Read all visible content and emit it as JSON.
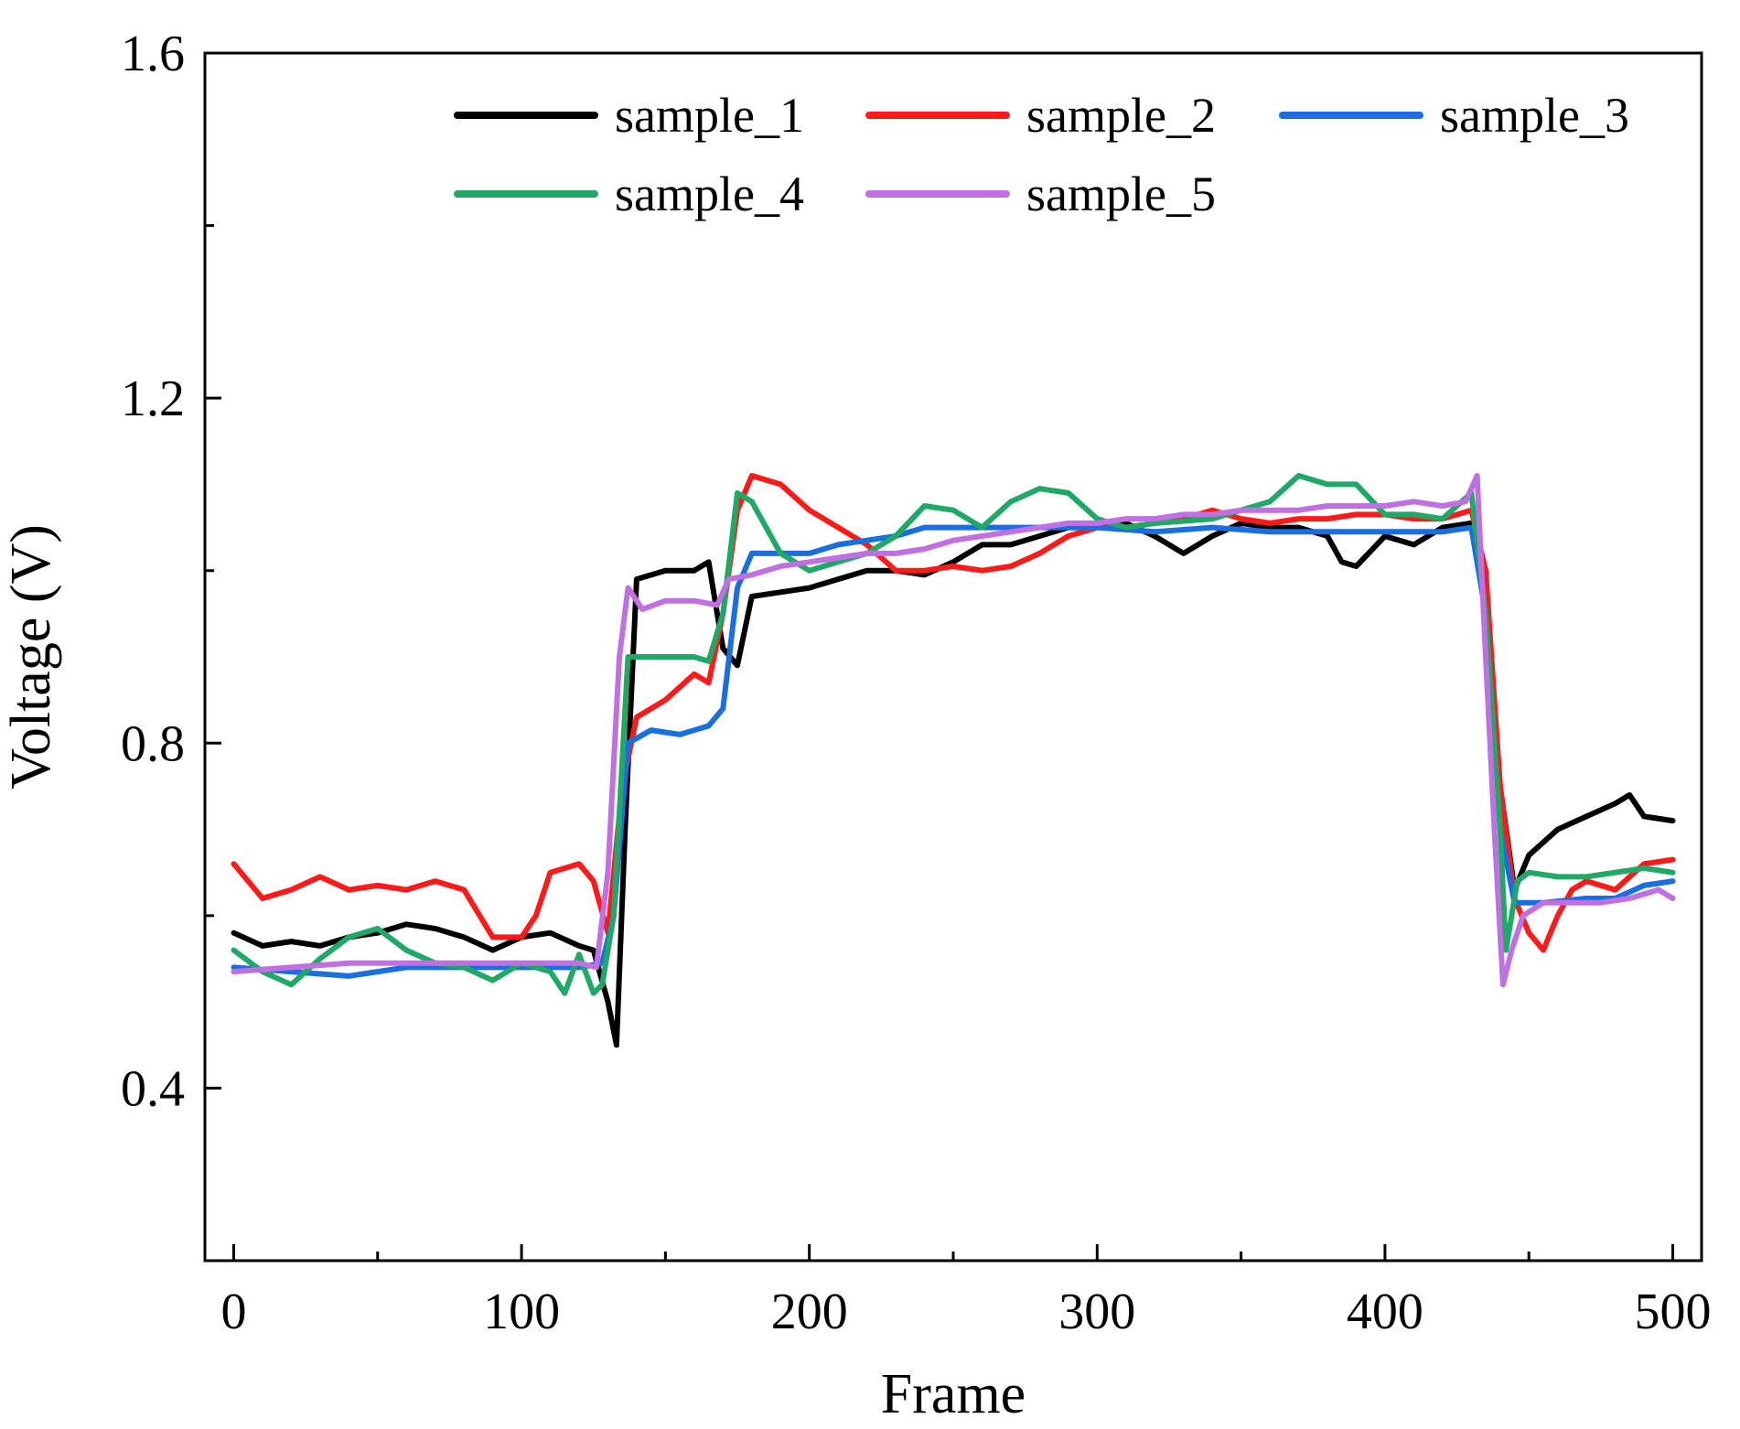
{
  "chart_data": {
    "type": "line",
    "title": "",
    "xlabel": "Frame",
    "ylabel": "Voltage (V)",
    "xlim": [
      -10,
      510
    ],
    "ylim": [
      0.2,
      1.6
    ],
    "xticks": [
      0,
      100,
      200,
      300,
      400,
      500
    ],
    "xtick_labels": [
      "0",
      "100",
      "200",
      "300",
      "400",
      "500"
    ],
    "yticks": [
      0.4,
      0.8,
      1.2,
      1.6
    ],
    "ytick_labels": [
      "0.4",
      "0.8",
      "1.2",
      "1.6"
    ],
    "grid": false,
    "legend_position": "top",
    "series": [
      {
        "name": "sample_1",
        "color": "#000000",
        "points": [
          [
            0,
            0.58
          ],
          [
            10,
            0.565
          ],
          [
            20,
            0.57
          ],
          [
            30,
            0.565
          ],
          [
            40,
            0.575
          ],
          [
            50,
            0.58
          ],
          [
            60,
            0.59
          ],
          [
            70,
            0.585
          ],
          [
            80,
            0.575
          ],
          [
            90,
            0.56
          ],
          [
            100,
            0.575
          ],
          [
            110,
            0.58
          ],
          [
            120,
            0.565
          ],
          [
            125,
            0.56
          ],
          [
            130,
            0.5
          ],
          [
            133,
            0.45
          ],
          [
            136,
            0.7
          ],
          [
            140,
            0.99
          ],
          [
            150,
            1.0
          ],
          [
            160,
            1.0
          ],
          [
            165,
            1.01
          ],
          [
            170,
            0.91
          ],
          [
            175,
            0.89
          ],
          [
            180,
            0.97
          ],
          [
            190,
            0.975
          ],
          [
            200,
            0.98
          ],
          [
            210,
            0.99
          ],
          [
            220,
            1.0
          ],
          [
            230,
            1.0
          ],
          [
            240,
            0.995
          ],
          [
            250,
            1.01
          ],
          [
            260,
            1.03
          ],
          [
            270,
            1.03
          ],
          [
            280,
            1.04
          ],
          [
            290,
            1.05
          ],
          [
            300,
            1.05
          ],
          [
            310,
            1.055
          ],
          [
            320,
            1.04
          ],
          [
            330,
            1.02
          ],
          [
            340,
            1.04
          ],
          [
            350,
            1.055
          ],
          [
            360,
            1.05
          ],
          [
            370,
            1.05
          ],
          [
            380,
            1.04
          ],
          [
            385,
            1.01
          ],
          [
            390,
            1.005
          ],
          [
            400,
            1.04
          ],
          [
            410,
            1.03
          ],
          [
            420,
            1.05
          ],
          [
            430,
            1.055
          ],
          [
            435,
            0.98
          ],
          [
            440,
            0.75
          ],
          [
            445,
            0.63
          ],
          [
            450,
            0.67
          ],
          [
            460,
            0.7
          ],
          [
            470,
            0.715
          ],
          [
            480,
            0.73
          ],
          [
            485,
            0.74
          ],
          [
            490,
            0.715
          ],
          [
            500,
            0.71
          ]
        ]
      },
      {
        "name": "sample_2",
        "color": "#ff1a1a",
        "points": [
          [
            0,
            0.66
          ],
          [
            10,
            0.62
          ],
          [
            20,
            0.63
          ],
          [
            30,
            0.645
          ],
          [
            40,
            0.63
          ],
          [
            50,
            0.635
          ],
          [
            60,
            0.63
          ],
          [
            70,
            0.64
          ],
          [
            80,
            0.63
          ],
          [
            90,
            0.575
          ],
          [
            100,
            0.575
          ],
          [
            105,
            0.6
          ],
          [
            110,
            0.65
          ],
          [
            120,
            0.66
          ],
          [
            125,
            0.64
          ],
          [
            130,
            0.58
          ],
          [
            135,
            0.75
          ],
          [
            140,
            0.83
          ],
          [
            150,
            0.85
          ],
          [
            160,
            0.88
          ],
          [
            165,
            0.87
          ],
          [
            170,
            0.95
          ],
          [
            175,
            1.07
          ],
          [
            180,
            1.11
          ],
          [
            190,
            1.1
          ],
          [
            200,
            1.07
          ],
          [
            210,
            1.05
          ],
          [
            220,
            1.03
          ],
          [
            230,
            1.0
          ],
          [
            240,
            1.0
          ],
          [
            250,
            1.005
          ],
          [
            260,
            1.0
          ],
          [
            270,
            1.005
          ],
          [
            280,
            1.02
          ],
          [
            290,
            1.04
          ],
          [
            300,
            1.05
          ],
          [
            310,
            1.05
          ],
          [
            320,
            1.055
          ],
          [
            330,
            1.06
          ],
          [
            340,
            1.07
          ],
          [
            350,
            1.06
          ],
          [
            360,
            1.055
          ],
          [
            370,
            1.06
          ],
          [
            380,
            1.06
          ],
          [
            390,
            1.065
          ],
          [
            400,
            1.065
          ],
          [
            410,
            1.06
          ],
          [
            420,
            1.06
          ],
          [
            430,
            1.07
          ],
          [
            435,
            1.0
          ],
          [
            440,
            0.75
          ],
          [
            445,
            0.62
          ],
          [
            450,
            0.58
          ],
          [
            455,
            0.56
          ],
          [
            460,
            0.6
          ],
          [
            465,
            0.63
          ],
          [
            470,
            0.64
          ],
          [
            480,
            0.63
          ],
          [
            490,
            0.66
          ],
          [
            500,
            0.665
          ]
        ]
      },
      {
        "name": "sample_3",
        "color": "#1a6fe0",
        "points": [
          [
            0,
            0.54
          ],
          [
            20,
            0.535
          ],
          [
            40,
            0.53
          ],
          [
            60,
            0.54
          ],
          [
            80,
            0.54
          ],
          [
            100,
            0.54
          ],
          [
            120,
            0.54
          ],
          [
            128,
            0.545
          ],
          [
            132,
            0.6
          ],
          [
            137,
            0.8
          ],
          [
            145,
            0.815
          ],
          [
            155,
            0.81
          ],
          [
            165,
            0.82
          ],
          [
            170,
            0.84
          ],
          [
            175,
            0.98
          ],
          [
            180,
            1.02
          ],
          [
            190,
            1.02
          ],
          [
            200,
            1.02
          ],
          [
            210,
            1.03
          ],
          [
            220,
            1.035
          ],
          [
            230,
            1.04
          ],
          [
            240,
            1.05
          ],
          [
            250,
            1.05
          ],
          [
            260,
            1.05
          ],
          [
            270,
            1.05
          ],
          [
            280,
            1.05
          ],
          [
            290,
            1.05
          ],
          [
            300,
            1.05
          ],
          [
            320,
            1.045
          ],
          [
            340,
            1.05
          ],
          [
            360,
            1.045
          ],
          [
            380,
            1.045
          ],
          [
            400,
            1.045
          ],
          [
            420,
            1.045
          ],
          [
            430,
            1.05
          ],
          [
            435,
            0.95
          ],
          [
            440,
            0.7
          ],
          [
            445,
            0.615
          ],
          [
            455,
            0.615
          ],
          [
            470,
            0.62
          ],
          [
            480,
            0.62
          ],
          [
            490,
            0.635
          ],
          [
            500,
            0.64
          ]
        ]
      },
      {
        "name": "sample_4",
        "color": "#1fa866",
        "points": [
          [
            0,
            0.56
          ],
          [
            10,
            0.535
          ],
          [
            20,
            0.52
          ],
          [
            30,
            0.55
          ],
          [
            40,
            0.575
          ],
          [
            50,
            0.585
          ],
          [
            60,
            0.56
          ],
          [
            70,
            0.545
          ],
          [
            80,
            0.54
          ],
          [
            90,
            0.525
          ],
          [
            100,
            0.545
          ],
          [
            110,
            0.535
          ],
          [
            115,
            0.51
          ],
          [
            120,
            0.555
          ],
          [
            125,
            0.51
          ],
          [
            128,
            0.52
          ],
          [
            132,
            0.6
          ],
          [
            137,
            0.9
          ],
          [
            150,
            0.9
          ],
          [
            160,
            0.9
          ],
          [
            165,
            0.895
          ],
          [
            170,
            0.95
          ],
          [
            175,
            1.09
          ],
          [
            180,
            1.08
          ],
          [
            190,
            1.02
          ],
          [
            200,
            1.0
          ],
          [
            210,
            1.01
          ],
          [
            220,
            1.02
          ],
          [
            230,
            1.04
          ],
          [
            240,
            1.075
          ],
          [
            250,
            1.07
          ],
          [
            260,
            1.05
          ],
          [
            270,
            1.08
          ],
          [
            280,
            1.095
          ],
          [
            290,
            1.09
          ],
          [
            300,
            1.06
          ],
          [
            310,
            1.05
          ],
          [
            320,
            1.055
          ],
          [
            340,
            1.06
          ],
          [
            360,
            1.08
          ],
          [
            370,
            1.11
          ],
          [
            380,
            1.1
          ],
          [
            390,
            1.1
          ],
          [
            400,
            1.065
          ],
          [
            410,
            1.065
          ],
          [
            420,
            1.06
          ],
          [
            430,
            1.09
          ],
          [
            435,
            0.95
          ],
          [
            440,
            0.7
          ],
          [
            442,
            0.56
          ],
          [
            446,
            0.64
          ],
          [
            450,
            0.65
          ],
          [
            460,
            0.645
          ],
          [
            470,
            0.645
          ],
          [
            480,
            0.65
          ],
          [
            490,
            0.655
          ],
          [
            500,
            0.65
          ]
        ]
      },
      {
        "name": "sample_5",
        "color": "#c070e0",
        "points": [
          [
            0,
            0.535
          ],
          [
            20,
            0.54
          ],
          [
            40,
            0.545
          ],
          [
            60,
            0.545
          ],
          [
            80,
            0.545
          ],
          [
            100,
            0.545
          ],
          [
            120,
            0.545
          ],
          [
            126,
            0.54
          ],
          [
            130,
            0.65
          ],
          [
            134,
            0.9
          ],
          [
            137,
            0.98
          ],
          [
            142,
            0.955
          ],
          [
            150,
            0.965
          ],
          [
            160,
            0.965
          ],
          [
            168,
            0.96
          ],
          [
            172,
            0.99
          ],
          [
            180,
            0.995
          ],
          [
            190,
            1.005
          ],
          [
            200,
            1.01
          ],
          [
            210,
            1.015
          ],
          [
            220,
            1.02
          ],
          [
            230,
            1.02
          ],
          [
            240,
            1.025
          ],
          [
            250,
            1.035
          ],
          [
            260,
            1.04
          ],
          [
            270,
            1.045
          ],
          [
            280,
            1.05
          ],
          [
            290,
            1.055
          ],
          [
            300,
            1.055
          ],
          [
            310,
            1.06
          ],
          [
            320,
            1.06
          ],
          [
            330,
            1.065
          ],
          [
            340,
            1.065
          ],
          [
            350,
            1.07
          ],
          [
            360,
            1.07
          ],
          [
            370,
            1.07
          ],
          [
            380,
            1.075
          ],
          [
            390,
            1.075
          ],
          [
            400,
            1.075
          ],
          [
            410,
            1.08
          ],
          [
            420,
            1.075
          ],
          [
            428,
            1.08
          ],
          [
            432,
            1.11
          ],
          [
            435,
            0.9
          ],
          [
            438,
            0.7
          ],
          [
            441,
            0.52
          ],
          [
            444,
            0.56
          ],
          [
            448,
            0.6
          ],
          [
            455,
            0.615
          ],
          [
            465,
            0.615
          ],
          [
            475,
            0.615
          ],
          [
            485,
            0.62
          ],
          [
            495,
            0.63
          ],
          [
            500,
            0.62
          ]
        ]
      }
    ]
  }
}
